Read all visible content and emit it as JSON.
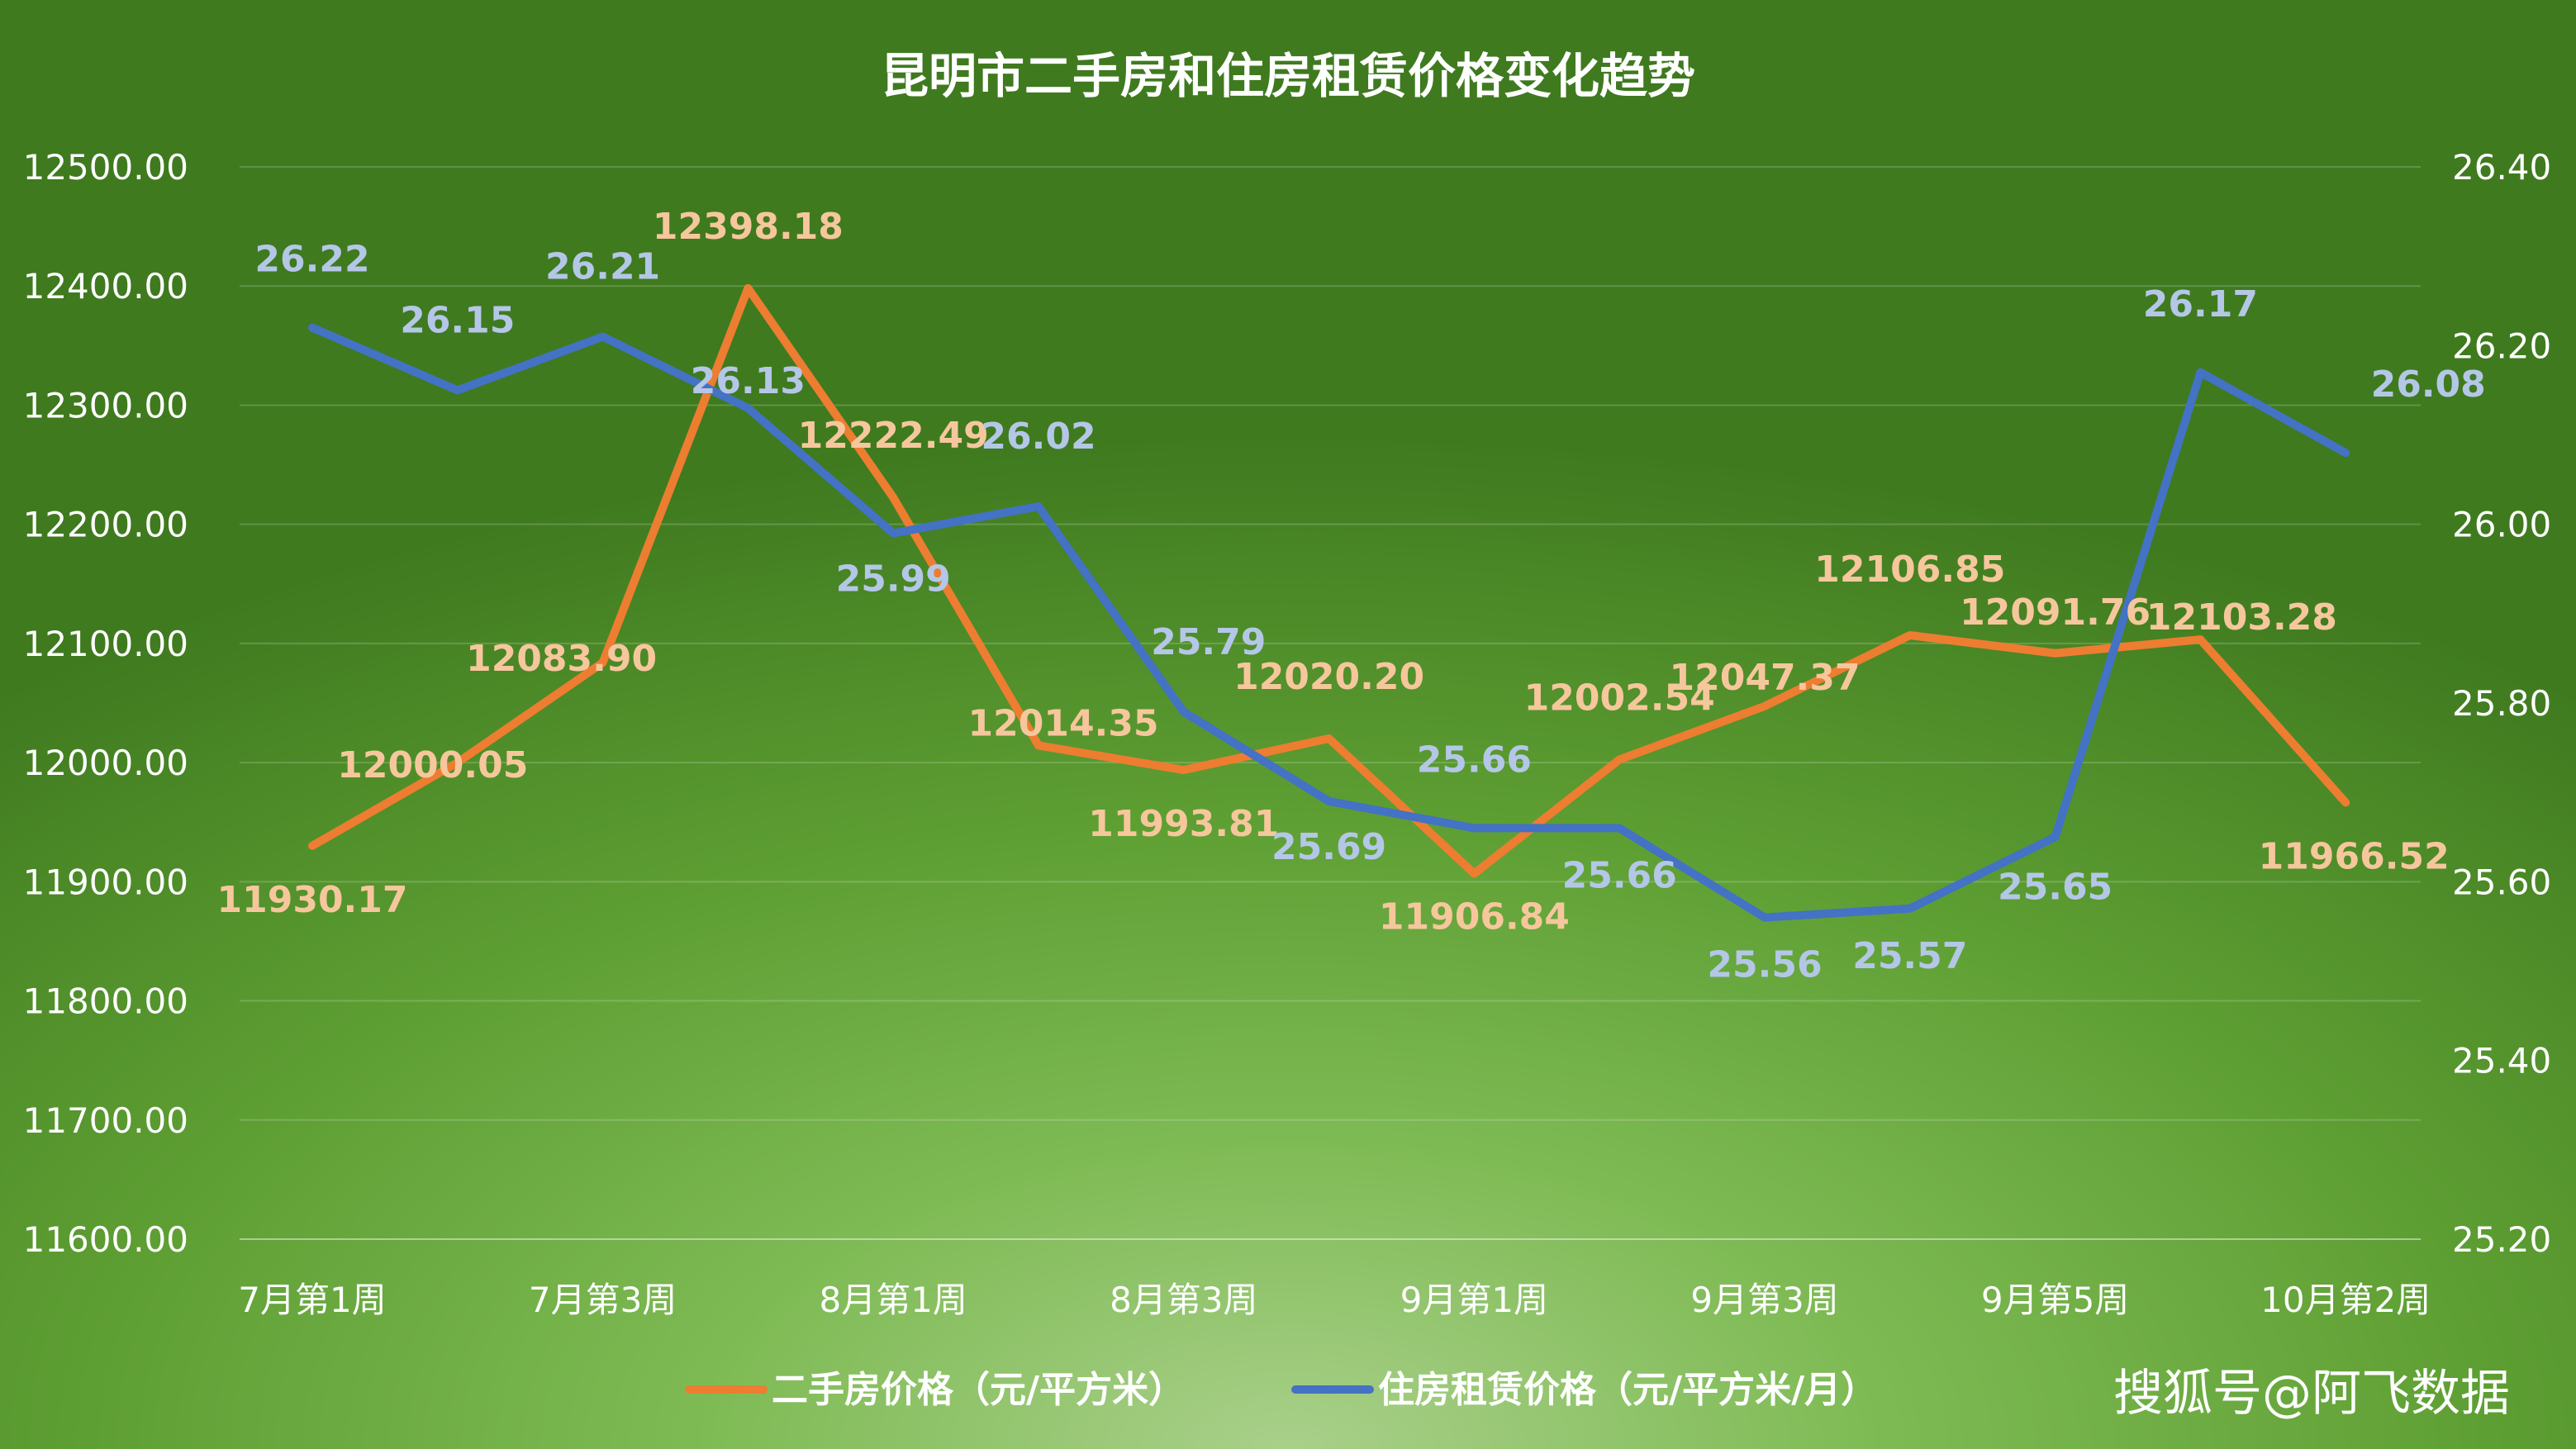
{
  "chart_data": {
    "type": "line",
    "title": "昆明市二手房和住房租赁价格变化趋势",
    "x_tick_labels": [
      "7月第1周",
      "7月第3周",
      "8月第1周",
      "8月第3周",
      "9月第1周",
      "9月第3周",
      "9月第5周",
      "10月第2周"
    ],
    "y_left": {
      "ylim": [
        11600,
        12500
      ],
      "ticks": [
        "11600.00",
        "11700.00",
        "11800.00",
        "11900.00",
        "12000.00",
        "12100.00",
        "12200.00",
        "12300.00",
        "12400.00",
        "12500.00"
      ]
    },
    "y_right": {
      "ylim": [
        25.2,
        26.4
      ],
      "ticks": [
        "25.20",
        "25.40",
        "25.60",
        "25.80",
        "26.00",
        "26.20",
        "26.40"
      ]
    },
    "grid": true,
    "legend_position": "bottom",
    "series": [
      {
        "name": "二手房价格（元/平方米）",
        "axis": "left",
        "color": "#ed7d31",
        "values": [
          11930.17,
          12000.05,
          12083.9,
          12398.18,
          12222.49,
          12014.35,
          11993.81,
          12020.2,
          11906.84,
          12002.54,
          12047.37,
          12106.85,
          12091.76,
          12103.28,
          11966.52
        ],
        "labels": [
          "11930.17",
          "12000.05",
          "12083.90",
          "12398.18",
          "12222.49",
          "12014.35",
          "11993.81",
          "12020.20",
          "11906.84",
          "12002.54",
          "12047.37",
          "12106.85",
          "12091.76",
          "12103.28",
          "11966.52"
        ]
      },
      {
        "name": "住房租赁价格（元/平方米/月）",
        "axis": "right",
        "color": "#4472c4",
        "values": [
          26.22,
          26.15,
          26.21,
          26.13,
          25.99,
          26.02,
          25.79,
          25.69,
          25.66,
          25.66,
          25.56,
          25.57,
          25.65,
          26.17,
          26.08
        ],
        "labels": [
          "26.22",
          "26.15",
          "26.21",
          "26.13",
          "25.99",
          "26.02",
          "25.79",
          "25.69",
          "25.66",
          "25.66",
          "25.56",
          "25.57",
          "25.65",
          "26.17",
          "26.08"
        ]
      }
    ]
  },
  "watermark": "搜狐号@阿飞数据"
}
